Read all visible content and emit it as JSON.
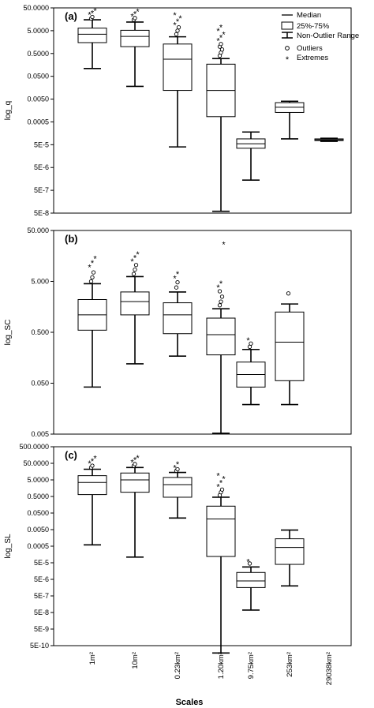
{
  "figure": {
    "xlabel": "Scales",
    "categories": [
      "1m²",
      "10m²",
      "0.23km²",
      "1.20km²",
      "9.75km²",
      "253km²",
      "29038km²"
    ],
    "legend": {
      "median": "Median",
      "iqr": "25%-75%",
      "range": "Non-Outlier Range",
      "outliers": "Outliers",
      "extremes": "Extremes"
    }
  },
  "chart_data": [
    {
      "type": "box",
      "panel": "(a)",
      "ylabel": "log_q",
      "yscale": "log",
      "ylim": [
        5e-08,
        50
      ],
      "tick_values": [
        50,
        5,
        0.5,
        0.05,
        0.005,
        0.0005,
        5e-05,
        5e-06,
        5e-07,
        5e-08
      ],
      "tick_labels": [
        "50.0000",
        "5.0000",
        "0.5000",
        "0.0500",
        "0.0050",
        "0.0005",
        "5E-5",
        "5E-6",
        "5E-7",
        "5E-8"
      ],
      "boxes": [
        {
          "category": "1m²",
          "min": 0.11,
          "q1": 1.5,
          "median": 3.5,
          "q3": 6.5,
          "max": 15,
          "outliers": [
            17,
            20
          ],
          "extremes": [
            25,
            30,
            38
          ]
        },
        {
          "category": "10m²",
          "min": 0.018,
          "q1": 1.0,
          "median": 2.8,
          "q3": 5.2,
          "max": 12,
          "outliers": [
            15,
            18
          ],
          "extremes": [
            22,
            28,
            35
          ]
        },
        {
          "category": "0.23km²",
          "min": 4e-05,
          "q1": 0.012,
          "median": 0.28,
          "q3": 1.3,
          "max": 2.7,
          "outliers": [
            3.5,
            5.0,
            7.0
          ],
          "extremes": [
            9,
            13,
            18,
            24
          ]
        },
        {
          "category": "1.20km²",
          "min": 6e-08,
          "q1": 0.00085,
          "median": 0.012,
          "q3": 0.17,
          "max": 0.3,
          "outliers": [
            0.4,
            0.55,
            0.75,
            1.0,
            1.3
          ],
          "extremes": [
            1.8,
            2.5,
            3.5,
            5.0,
            7.0
          ]
        },
        {
          "category": "9.75km²",
          "min": 1.4e-06,
          "q1": 3.5e-05,
          "median": 5.5e-05,
          "q3": 9e-05,
          "max": 0.00018,
          "outliers": [],
          "extremes": []
        },
        {
          "category": "253km²",
          "min": 9e-05,
          "q1": 0.0013,
          "median": 0.0022,
          "q3": 0.0035,
          "max": 0.004,
          "outliers": [],
          "extremes": []
        },
        {
          "category": "29038km²",
          "min": 7e-05,
          "q1": 7.6e-05,
          "median": 8.2e-05,
          "q3": 9e-05,
          "max": 9.6e-05,
          "outliers": [],
          "extremes": []
        }
      ]
    },
    {
      "type": "box",
      "panel": "(b)",
      "ylabel": "log_SC",
      "yscale": "log",
      "ylim": [
        0.005,
        50
      ],
      "tick_values": [
        50,
        5,
        0.5,
        0.05,
        0.005
      ],
      "tick_labels": [
        "50.000",
        "5.000",
        "0.500",
        "0.050",
        "0.005"
      ],
      "boxes": [
        {
          "category": "1m²",
          "min": 0.042,
          "q1": 0.55,
          "median": 1.1,
          "q3": 2.2,
          "max": 4.5,
          "outliers": [
            5.0,
            6.0,
            7.5
          ],
          "extremes": [
            9.5,
            11.5,
            14
          ]
        },
        {
          "category": "10m²",
          "min": 0.12,
          "q1": 1.1,
          "median": 2.0,
          "q3": 3.1,
          "max": 6.2,
          "outliers": [
            7.0,
            8.5,
            10.5
          ],
          "extremes": [
            12.5,
            14.5,
            17
          ]
        },
        {
          "category": "0.23km²",
          "min": 0.17,
          "q1": 0.47,
          "median": 1.1,
          "q3": 1.9,
          "max": 3.1,
          "outliers": [
            3.8,
            4.8
          ],
          "extremes": [
            5.8,
            7.0
          ]
        },
        {
          "category": "1.20km²",
          "min": 0.0052,
          "q1": 0.18,
          "median": 0.45,
          "q3": 0.95,
          "max": 1.45,
          "outliers": [
            1.7,
            2.0,
            2.5,
            3.2
          ],
          "extremes": [
            3.8,
            4.6,
            27
          ]
        },
        {
          "category": "9.75km²",
          "min": 0.019,
          "q1": 0.042,
          "median": 0.074,
          "q3": 0.13,
          "max": 0.23,
          "outliers": [
            0.26,
            0.3
          ],
          "extremes": [
            0.35
          ]
        },
        {
          "category": "253km²",
          "min": 0.019,
          "q1": 0.056,
          "median": 0.32,
          "q3": 1.25,
          "max": 1.8,
          "outliers": [
            2.9
          ],
          "extremes": []
        }
      ]
    },
    {
      "type": "box",
      "panel": "(c)",
      "ylabel": "log_SL",
      "yscale": "log",
      "ylim": [
        5e-10,
        500
      ],
      "tick_values": [
        500,
        50,
        5,
        0.5,
        0.05,
        0.005,
        0.0005,
        5e-05,
        5e-06,
        5e-07,
        5e-08,
        5e-09,
        5e-10
      ],
      "tick_labels": [
        "500.0000",
        "50.0000",
        "5.0000",
        "0.5000",
        "0.0500",
        "0.0050",
        "0.0005",
        "5E-5",
        "5E-6",
        "5E-7",
        "5E-8",
        "5E-9",
        "5E-10"
      ],
      "boxes": [
        {
          "category": "1m²",
          "min": 0.0006,
          "q1": 0.65,
          "median": 3.5,
          "q3": 9,
          "max": 22,
          "outliers": [
            28,
            36
          ],
          "extremes": [
            50,
            70,
            100
          ]
        },
        {
          "category": "10m²",
          "min": 0.00011,
          "q1": 0.9,
          "median": 5.0,
          "q3": 13,
          "max": 28,
          "outliers": [
            35,
            45
          ],
          "extremes": [
            60,
            80,
            110
          ]
        },
        {
          "category": "0.23km²",
          "min": 0.025,
          "q1": 0.45,
          "median": 2.6,
          "q3": 7,
          "max": 14,
          "outliers": [
            18,
            22
          ],
          "extremes": [
            28,
            45
          ]
        },
        {
          "category": "1.20km²",
          "min": 1.8e-10,
          "q1": 0.00012,
          "median": 0.022,
          "q3": 0.13,
          "max": 0.45,
          "outliers": [
            0.6,
            0.9,
            1.3
          ],
          "extremes": [
            2.0,
            3.5,
            6.0,
            9.0
          ]
        },
        {
          "category": "9.75km²",
          "min": 7e-08,
          "q1": 1.6e-06,
          "median": 4e-06,
          "q3": 1.3e-05,
          "max": 2.8e-05,
          "outliers": [
            4.5e-05
          ],
          "extremes": [
            6e-05
          ]
        },
        {
          "category": "253km²",
          "min": 2e-06,
          "q1": 4e-05,
          "median": 0.00042,
          "q3": 0.0014,
          "max": 0.0047,
          "outliers": [],
          "extremes": []
        }
      ]
    }
  ]
}
